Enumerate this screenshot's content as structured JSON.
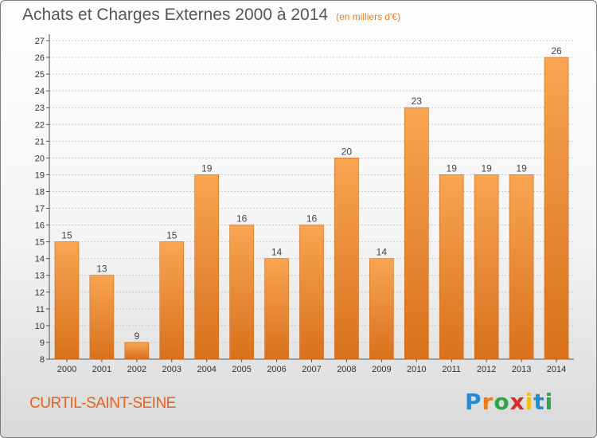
{
  "header": {
    "title": "Achats et Charges Externes 2000 à 2014",
    "unit": "(en milliers d'€)"
  },
  "commune": "CURTIL-SAINT-SEINE",
  "logo": {
    "text": "Proxiti",
    "letter_colors": [
      "#1f8ed6",
      "#f07a1a",
      "#2aa845",
      "#d92b2b",
      "#f4c20d",
      "#1f8ed6",
      "#2aa845"
    ]
  },
  "colors": {
    "bar_top": "#f8a552",
    "bar_bottom": "#d9711c",
    "bar_edge": "#c8661a",
    "grid": "#cccccc",
    "axis": "#555555"
  },
  "chart_data": {
    "type": "bar",
    "categories": [
      "2000",
      "2001",
      "2002",
      "2003",
      "2004",
      "2005",
      "2006",
      "2007",
      "2008",
      "2009",
      "2010",
      "2011",
      "2012",
      "2013",
      "2014"
    ],
    "values": [
      15,
      13,
      9,
      15,
      19,
      16,
      14,
      16,
      20,
      14,
      23,
      19,
      19,
      19,
      26
    ],
    "ylim": [
      8,
      27
    ],
    "yticks": [
      8,
      9,
      10,
      11,
      12,
      13,
      14,
      15,
      16,
      17,
      18,
      19,
      20,
      21,
      22,
      23,
      24,
      25,
      26,
      27
    ],
    "grid": true,
    "legend": "none"
  }
}
